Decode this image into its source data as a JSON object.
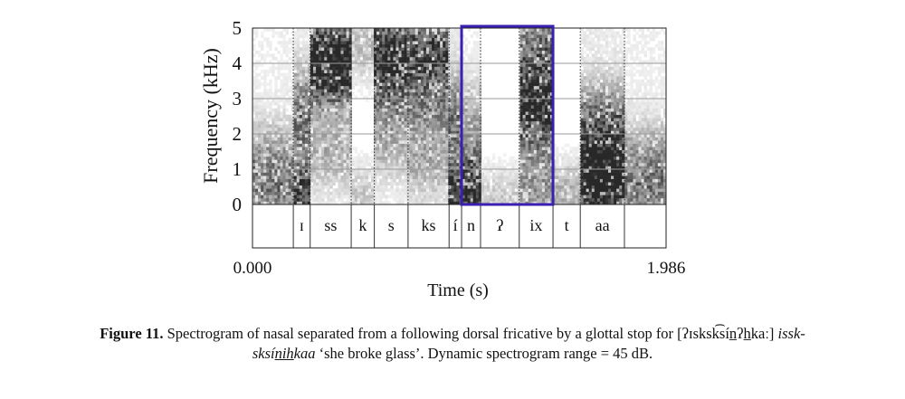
{
  "chart_data": {
    "type": "heatmap",
    "title": "",
    "xlabel": "Time (s)",
    "ylabel": "Frequency (kHz)",
    "xlim": [
      0.0,
      1.986
    ],
    "ylim": [
      0,
      5
    ],
    "x_tick_labels": [
      "0.000",
      "1.986"
    ],
    "y_tick_labels": [
      "0",
      "1",
      "2",
      "3",
      "4",
      "5"
    ],
    "segments": [
      {
        "label": "ɪ",
        "start": 0.196,
        "end": 0.277
      },
      {
        "label": "ss",
        "start": 0.277,
        "end": 0.474
      },
      {
        "label": "k",
        "start": 0.474,
        "end": 0.585
      },
      {
        "label": "s",
        "start": 0.585,
        "end": 0.747
      },
      {
        "label": "ks",
        "start": 0.747,
        "end": 0.944
      },
      {
        "label": "í",
        "start": 0.944,
        "end": 1.004
      },
      {
        "label": "n",
        "start": 1.004,
        "end": 1.095
      },
      {
        "label": "ʔ",
        "start": 1.095,
        "end": 1.281
      },
      {
        "label": "ix",
        "start": 1.281,
        "end": 1.443
      },
      {
        "label": "t",
        "start": 1.443,
        "end": 1.574
      },
      {
        "label": "aa",
        "start": 1.574,
        "end": 1.786
      }
    ],
    "highlight": {
      "start": 1.004,
      "end": 1.443,
      "color": "#3a1fb0"
    },
    "colors": {
      "frame": "#222222",
      "grid": "#9a9a9a",
      "highlight": "#3a1fb0"
    }
  },
  "caption": {
    "label": "Figure 11.",
    "text": " Spectrogram of nasal separated from a following dorsal fricative by a glottal stop for [ʔɪsksk͡sín̲ʔh̲kaː] ",
    "word_a": "issk-",
    "word_b": "sksí",
    "word_c": "nih",
    "word_d": "kaa",
    "gloss": " ‘she broke glass’. Dynamic spectrogram range = 45 dB."
  }
}
